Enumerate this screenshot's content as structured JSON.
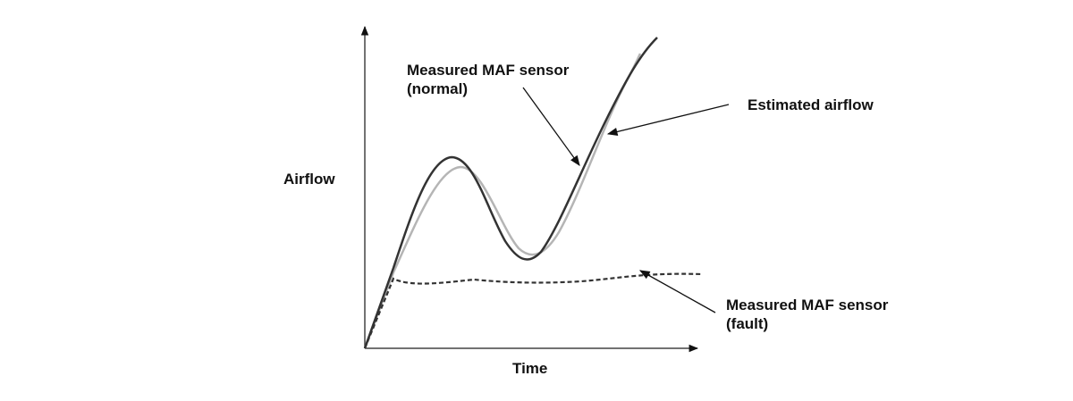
{
  "axes": {
    "y_label": "Airflow",
    "x_label": "Time"
  },
  "annotations": {
    "normal": {
      "line1": "Measured MAF sensor",
      "line2": "(normal)"
    },
    "estimated": "Estimated airflow",
    "fault": {
      "line1": "Measured MAF sensor",
      "line2": "(fault)"
    }
  }
}
